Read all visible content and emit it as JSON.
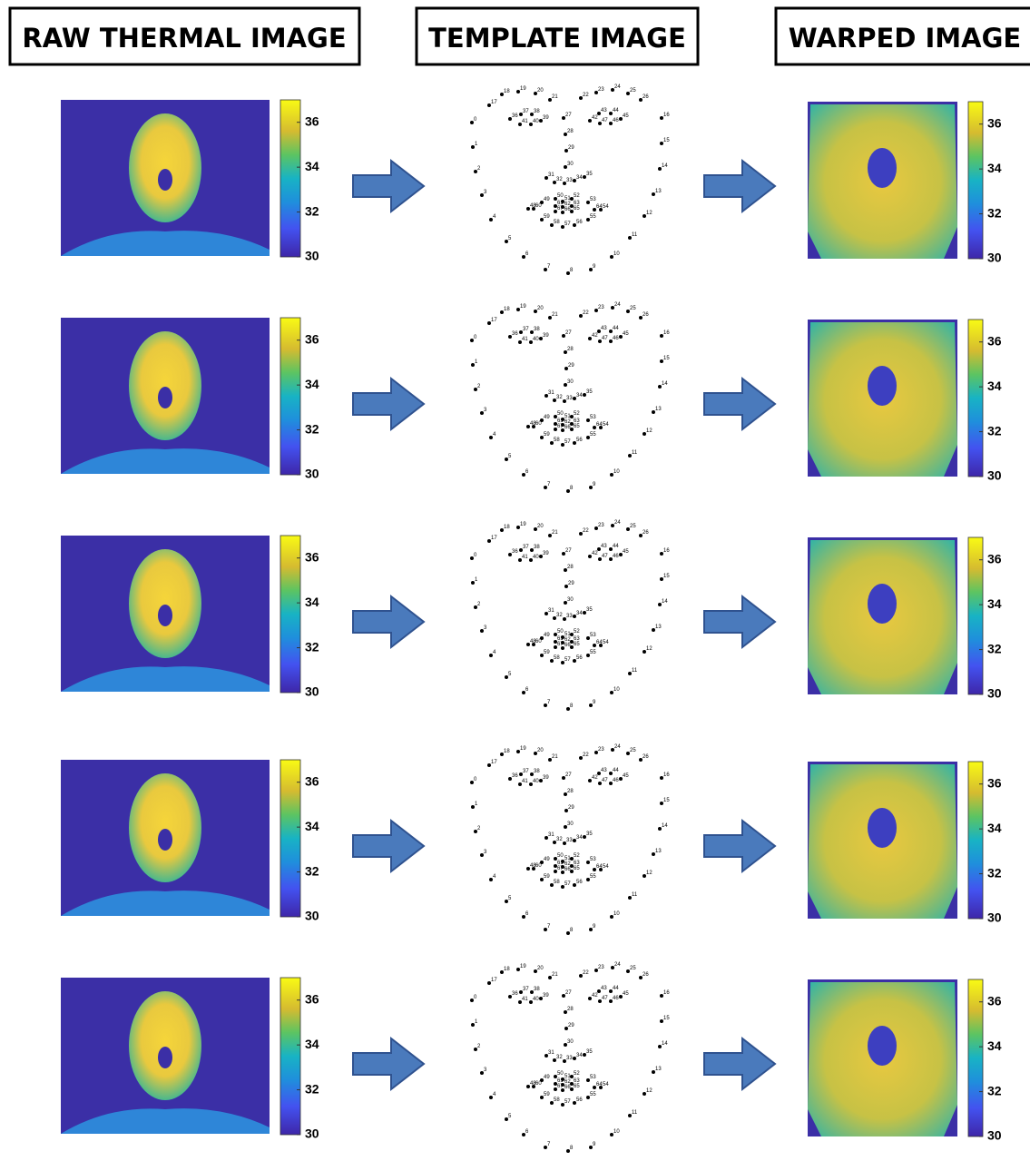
{
  "headers": [
    "RAW THERMAL IMAGE",
    "TEMPLATE IMAGE",
    "WARPED IMAGE"
  ],
  "colorbar": {
    "lim": [
      30,
      37
    ],
    "ticks": [
      30,
      32,
      34,
      36
    ]
  },
  "landmarks": [
    0,
    1,
    2,
    3,
    4,
    5,
    6,
    7,
    8,
    9,
    10,
    11,
    12,
    13,
    14,
    15,
    16,
    17,
    18,
    19,
    20,
    21,
    22,
    23,
    24,
    25,
    26,
    27,
    28,
    29,
    30,
    31,
    32,
    33,
    34,
    35,
    36,
    37,
    38,
    39,
    40,
    41,
    42,
    43,
    44,
    45,
    46,
    47,
    48,
    49,
    50,
    51,
    52,
    53,
    54,
    55,
    56,
    57,
    58,
    59,
    60,
    61,
    62,
    63,
    64,
    65,
    66,
    67
  ]
}
